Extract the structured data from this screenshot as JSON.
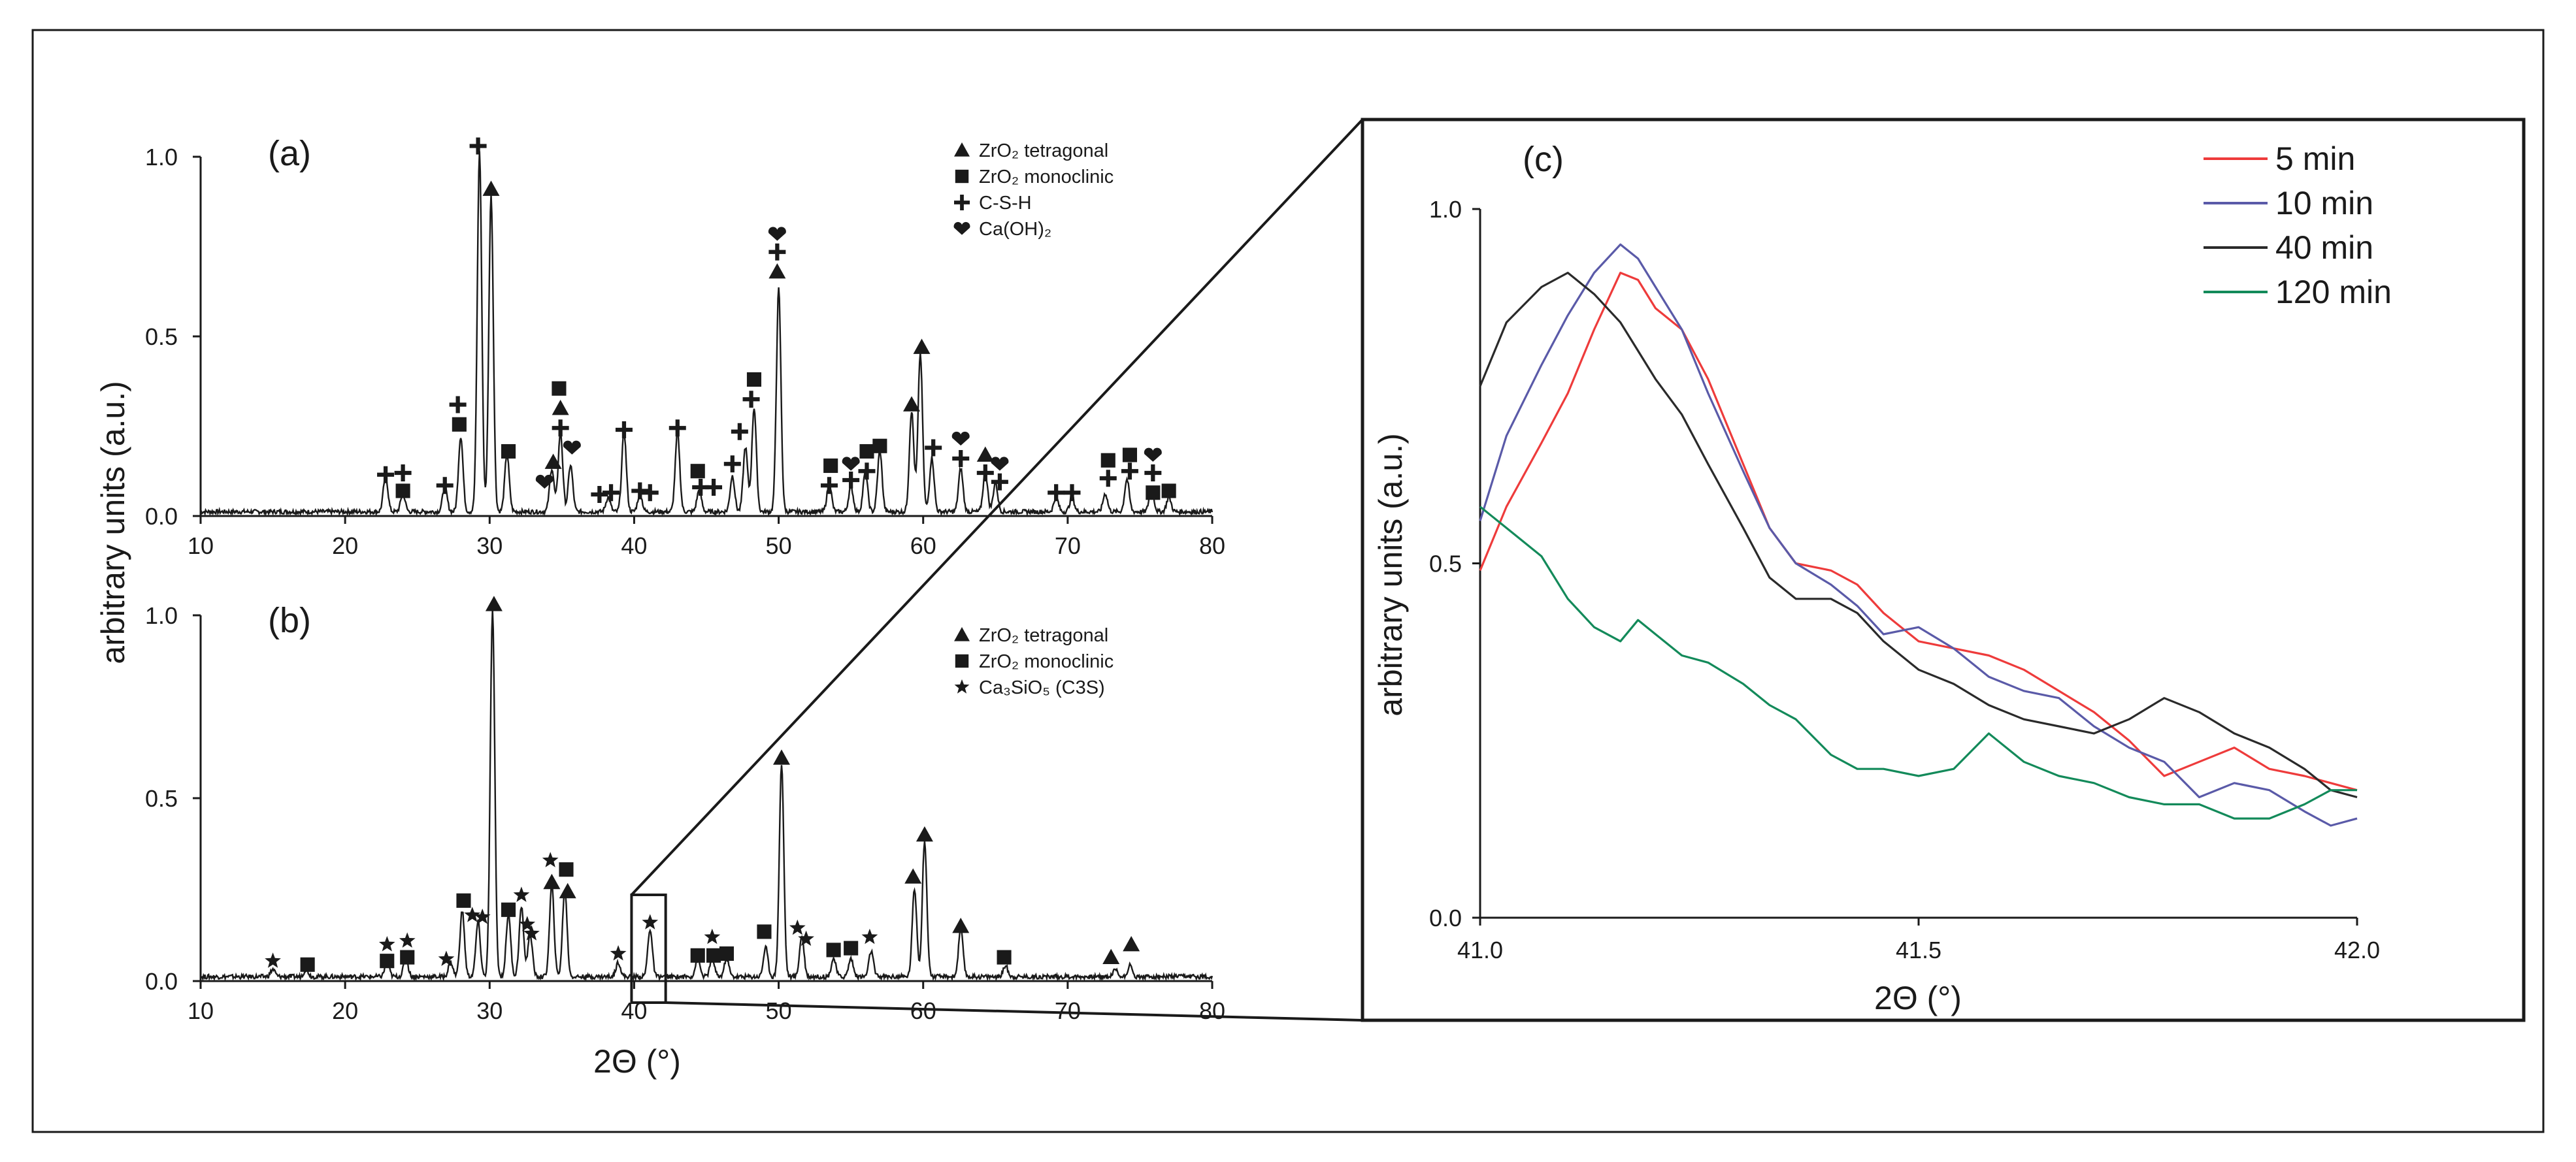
{
  "chart_data": [
    {
      "panel": "(a)",
      "type": "line",
      "xlim": [
        10,
        80
      ],
      "ylim": [
        0,
        1.0
      ],
      "x_ticks": [
        "10",
        "20",
        "30",
        "40",
        "50",
        "60",
        "70",
        "80"
      ],
      "y_ticks": [
        "0.0",
        "0.5",
        "1.0"
      ],
      "legend": [
        "ZrO₂ tetragonal",
        "ZrO₂ monoclinic",
        "C-S-H",
        "Ca(OH)₂"
      ],
      "legend_symbols": [
        "triangle",
        "square",
        "plus",
        "heart"
      ],
      "peaks": [
        {
          "x": 22.8,
          "y": 0.1
        },
        {
          "x": 24.0,
          "y": 0.05
        },
        {
          "x": 26.9,
          "y": 0.07
        },
        {
          "x": 28.0,
          "y": 0.21
        },
        {
          "x": 29.3,
          "y": 1.0
        },
        {
          "x": 30.1,
          "y": 0.88
        },
        {
          "x": 31.2,
          "y": 0.16
        },
        {
          "x": 34.3,
          "y": 0.12
        },
        {
          "x": 34.9,
          "y": 0.22
        },
        {
          "x": 35.6,
          "y": 0.13
        },
        {
          "x": 38.2,
          "y": 0.04
        },
        {
          "x": 39.3,
          "y": 0.22
        },
        {
          "x": 40.4,
          "y": 0.05
        },
        {
          "x": 43.0,
          "y": 0.22
        },
        {
          "x": 44.5,
          "y": 0.06
        },
        {
          "x": 46.8,
          "y": 0.1
        },
        {
          "x": 47.7,
          "y": 0.18
        },
        {
          "x": 48.3,
          "y": 0.29
        },
        {
          "x": 50.0,
          "y": 0.62
        },
        {
          "x": 53.5,
          "y": 0.08
        },
        {
          "x": 55.0,
          "y": 0.07
        },
        {
          "x": 56.0,
          "y": 0.11
        },
        {
          "x": 57.0,
          "y": 0.17
        },
        {
          "x": 59.2,
          "y": 0.28
        },
        {
          "x": 59.8,
          "y": 0.44
        },
        {
          "x": 60.6,
          "y": 0.15
        },
        {
          "x": 62.6,
          "y": 0.12
        },
        {
          "x": 64.3,
          "y": 0.11
        },
        {
          "x": 65.0,
          "y": 0.08
        },
        {
          "x": 69.2,
          "y": 0.04
        },
        {
          "x": 70.3,
          "y": 0.04
        },
        {
          "x": 72.6,
          "y": 0.05
        },
        {
          "x": 74.1,
          "y": 0.09
        },
        {
          "x": 75.8,
          "y": 0.07
        },
        {
          "x": 77.0,
          "y": 0.04
        }
      ],
      "markers": [
        {
          "s": "plus",
          "x": 22.8,
          "y": 0.115
        },
        {
          "s": "plus",
          "x": 24.0,
          "y": 0.12
        },
        {
          "s": "square",
          "x": 24.0,
          "y": 0.07
        },
        {
          "s": "plus",
          "x": 26.9,
          "y": 0.085
        },
        {
          "s": "plus",
          "x": 27.8,
          "y": 0.31
        },
        {
          "s": "square",
          "x": 27.9,
          "y": 0.255
        },
        {
          "s": "plus",
          "x": 29.2,
          "y": 1.03
        },
        {
          "s": "triangle",
          "x": 30.1,
          "y": 0.91
        },
        {
          "s": "square",
          "x": 31.3,
          "y": 0.18
        },
        {
          "s": "heart",
          "x": 33.8,
          "y": 0.095
        },
        {
          "s": "triangle",
          "x": 34.4,
          "y": 0.15
        },
        {
          "s": "square",
          "x": 34.8,
          "y": 0.355
        },
        {
          "s": "triangle",
          "x": 34.9,
          "y": 0.3
        },
        {
          "s": "plus",
          "x": 34.9,
          "y": 0.245
        },
        {
          "s": "heart",
          "x": 35.7,
          "y": 0.19
        },
        {
          "s": "plus",
          "x": 37.6,
          "y": 0.06
        },
        {
          "s": "plus",
          "x": 38.4,
          "y": 0.065
        },
        {
          "s": "plus",
          "x": 39.3,
          "y": 0.24
        },
        {
          "s": "plus",
          "x": 40.4,
          "y": 0.07
        },
        {
          "s": "plus",
          "x": 41.1,
          "y": 0.065
        },
        {
          "s": "plus",
          "x": 43.0,
          "y": 0.245
        },
        {
          "s": "square",
          "x": 44.4,
          "y": 0.125
        },
        {
          "s": "plus",
          "x": 44.6,
          "y": 0.08
        },
        {
          "s": "plus",
          "x": 45.5,
          "y": 0.08
        },
        {
          "s": "plus",
          "x": 46.8,
          "y": 0.145
        },
        {
          "s": "plus",
          "x": 47.3,
          "y": 0.235
        },
        {
          "s": "square",
          "x": 48.3,
          "y": 0.38
        },
        {
          "s": "plus",
          "x": 48.1,
          "y": 0.325
        },
        {
          "s": "heart",
          "x": 49.9,
          "y": 0.785
        },
        {
          "s": "plus",
          "x": 49.9,
          "y": 0.735
        },
        {
          "s": "triangle",
          "x": 49.9,
          "y": 0.68
        },
        {
          "s": "square",
          "x": 53.6,
          "y": 0.14
        },
        {
          "s": "plus",
          "x": 53.5,
          "y": 0.085
        },
        {
          "s": "heart",
          "x": 55.0,
          "y": 0.145
        },
        {
          "s": "plus",
          "x": 55.0,
          "y": 0.1
        },
        {
          "s": "square",
          "x": 56.1,
          "y": 0.18
        },
        {
          "s": "plus",
          "x": 56.1,
          "y": 0.125
        },
        {
          "s": "square",
          "x": 57.0,
          "y": 0.195
        },
        {
          "s": "triangle",
          "x": 59.2,
          "y": 0.31
        },
        {
          "s": "triangle",
          "x": 59.9,
          "y": 0.47
        },
        {
          "s": "plus",
          "x": 60.7,
          "y": 0.19
        },
        {
          "s": "heart",
          "x": 62.6,
          "y": 0.215
        },
        {
          "s": "plus",
          "x": 62.6,
          "y": 0.16
        },
        {
          "s": "triangle",
          "x": 64.3,
          "y": 0.17
        },
        {
          "s": "plus",
          "x": 64.3,
          "y": 0.12
        },
        {
          "s": "heart",
          "x": 65.3,
          "y": 0.145
        },
        {
          "s": "plus",
          "x": 65.3,
          "y": 0.095
        },
        {
          "s": "plus",
          "x": 69.2,
          "y": 0.065
        },
        {
          "s": "plus",
          "x": 70.3,
          "y": 0.065
        },
        {
          "s": "square",
          "x": 72.8,
          "y": 0.155
        },
        {
          "s": "plus",
          "x": 72.8,
          "y": 0.105
        },
        {
          "s": "square",
          "x": 74.3,
          "y": 0.17
        },
        {
          "s": "plus",
          "x": 74.3,
          "y": 0.125
        },
        {
          "s": "heart",
          "x": 75.9,
          "y": 0.17
        },
        {
          "s": "plus",
          "x": 75.9,
          "y": 0.12
        },
        {
          "s": "square",
          "x": 75.9,
          "y": 0.065
        },
        {
          "s": "square",
          "x": 77.0,
          "y": 0.07
        }
      ]
    },
    {
      "panel": "(b)",
      "type": "line",
      "xlim": [
        10,
        80
      ],
      "ylim": [
        0,
        1.0
      ],
      "x_ticks": [
        "10",
        "20",
        "30",
        "40",
        "50",
        "60",
        "70",
        "80"
      ],
      "y_ticks": [
        "0.0",
        "0.5",
        "1.0"
      ],
      "xlabel": "2Θ (°)",
      "legend": [
        "ZrO₂ tetragonal",
        "ZrO₂ monoclinic",
        "Ca₃SiO₅ (C3S)"
      ],
      "legend_symbols": [
        "triangle",
        "square",
        "star"
      ],
      "zoom_window": [
        40,
        42
      ],
      "peaks": [
        {
          "x": 15.0,
          "y": 0.02
        },
        {
          "x": 17.3,
          "y": 0.02
        },
        {
          "x": 22.9,
          "y": 0.04
        },
        {
          "x": 24.2,
          "y": 0.05
        },
        {
          "x": 27.3,
          "y": 0.04
        },
        {
          "x": 28.1,
          "y": 0.18
        },
        {
          "x": 29.2,
          "y": 0.15
        },
        {
          "x": 30.2,
          "y": 1.0
        },
        {
          "x": 31.3,
          "y": 0.17
        },
        {
          "x": 32.2,
          "y": 0.19
        },
        {
          "x": 32.8,
          "y": 0.12
        },
        {
          "x": 34.3,
          "y": 0.25
        },
        {
          "x": 35.2,
          "y": 0.24
        },
        {
          "x": 38.9,
          "y": 0.04
        },
        {
          "x": 41.1,
          "y": 0.13
        },
        {
          "x": 44.4,
          "y": 0.05
        },
        {
          "x": 45.4,
          "y": 0.05
        },
        {
          "x": 46.4,
          "y": 0.05
        },
        {
          "x": 49.1,
          "y": 0.08
        },
        {
          "x": 50.2,
          "y": 0.58
        },
        {
          "x": 51.6,
          "y": 0.11
        },
        {
          "x": 53.8,
          "y": 0.05
        },
        {
          "x": 55.0,
          "y": 0.05
        },
        {
          "x": 56.4,
          "y": 0.07
        },
        {
          "x": 59.4,
          "y": 0.24
        },
        {
          "x": 60.1,
          "y": 0.37
        },
        {
          "x": 62.6,
          "y": 0.13
        },
        {
          "x": 65.7,
          "y": 0.03
        },
        {
          "x": 73.3,
          "y": 0.02
        },
        {
          "x": 74.3,
          "y": 0.03
        }
      ],
      "markers": [
        {
          "s": "star",
          "x": 15.0,
          "y": 0.055
        },
        {
          "s": "square",
          "x": 17.4,
          "y": 0.045
        },
        {
          "s": "star",
          "x": 22.9,
          "y": 0.1
        },
        {
          "s": "square",
          "x": 22.9,
          "y": 0.055
        },
        {
          "s": "star",
          "x": 24.3,
          "y": 0.11
        },
        {
          "s": "square",
          "x": 24.3,
          "y": 0.065
        },
        {
          "s": "star",
          "x": 27.0,
          "y": 0.06
        },
        {
          "s": "square",
          "x": 28.2,
          "y": 0.22
        },
        {
          "s": "star",
          "x": 28.8,
          "y": 0.18
        },
        {
          "s": "star",
          "x": 29.5,
          "y": 0.175
        },
        {
          "s": "triangle",
          "x": 30.3,
          "y": 1.03
        },
        {
          "s": "square",
          "x": 31.3,
          "y": 0.195
        },
        {
          "s": "star",
          "x": 32.2,
          "y": 0.235
        },
        {
          "s": "star",
          "x": 32.6,
          "y": 0.155
        },
        {
          "s": "star",
          "x": 32.9,
          "y": 0.13
        },
        {
          "s": "star",
          "x": 34.2,
          "y": 0.33
        },
        {
          "s": "triangle",
          "x": 34.3,
          "y": 0.27
        },
        {
          "s": "square",
          "x": 35.3,
          "y": 0.305
        },
        {
          "s": "triangle",
          "x": 35.4,
          "y": 0.245
        },
        {
          "s": "star",
          "x": 38.9,
          "y": 0.075
        },
        {
          "s": "star",
          "x": 41.1,
          "y": 0.16
        },
        {
          "s": "square",
          "x": 44.4,
          "y": 0.07
        },
        {
          "s": "star",
          "x": 45.4,
          "y": 0.12
        },
        {
          "s": "square",
          "x": 45.5,
          "y": 0.07
        },
        {
          "s": "square",
          "x": 46.4,
          "y": 0.075
        },
        {
          "s": "square",
          "x": 49.0,
          "y": 0.135
        },
        {
          "s": "triangle",
          "x": 50.2,
          "y": 0.61
        },
        {
          "s": "star",
          "x": 51.3,
          "y": 0.145
        },
        {
          "s": "star",
          "x": 51.9,
          "y": 0.115
        },
        {
          "s": "square",
          "x": 53.8,
          "y": 0.085
        },
        {
          "s": "square",
          "x": 55.0,
          "y": 0.09
        },
        {
          "s": "star",
          "x": 56.3,
          "y": 0.12
        },
        {
          "s": "triangle",
          "x": 59.3,
          "y": 0.285
        },
        {
          "s": "triangle",
          "x": 60.1,
          "y": 0.4
        },
        {
          "s": "triangle",
          "x": 62.6,
          "y": 0.15
        },
        {
          "s": "square",
          "x": 65.6,
          "y": 0.065
        },
        {
          "s": "triangle",
          "x": 73.0,
          "y": 0.065
        },
        {
          "s": "triangle",
          "x": 74.4,
          "y": 0.1
        }
      ]
    },
    {
      "panel": "(c)",
      "type": "line",
      "xlim": [
        41.0,
        42.0
      ],
      "ylim": [
        0,
        1.0
      ],
      "x_ticks": [
        "41.0",
        "41.5",
        "42.0"
      ],
      "y_ticks": [
        "0.0",
        "0.5",
        "1.0"
      ],
      "xlabel": "2Θ (°)",
      "legend_position": "top-right",
      "series": [
        {
          "name": "5 min",
          "color": "#ee3b3b",
          "x": [
            41.0,
            41.03,
            41.07,
            41.1,
            41.13,
            41.16,
            41.18,
            41.2,
            41.23,
            41.26,
            41.3,
            41.33,
            41.36,
            41.4,
            41.43,
            41.46,
            41.5,
            41.54,
            41.58,
            41.62,
            41.66,
            41.7,
            41.74,
            41.78,
            41.82,
            41.86,
            41.9,
            41.94,
            41.97,
            42.0
          ],
          "y": [
            0.49,
            0.58,
            0.67,
            0.74,
            0.83,
            0.91,
            0.9,
            0.86,
            0.83,
            0.76,
            0.64,
            0.55,
            0.5,
            0.49,
            0.47,
            0.43,
            0.39,
            0.38,
            0.37,
            0.35,
            0.32,
            0.29,
            0.25,
            0.2,
            0.22,
            0.24,
            0.21,
            0.2,
            0.19,
            0.18
          ]
        },
        {
          "name": "10 min",
          "color": "#5a5aa8",
          "x": [
            41.0,
            41.03,
            41.07,
            41.1,
            41.13,
            41.16,
            41.18,
            41.2,
            41.23,
            41.26,
            41.3,
            41.33,
            41.36,
            41.4,
            41.43,
            41.46,
            41.5,
            41.54,
            41.58,
            41.62,
            41.66,
            41.7,
            41.74,
            41.78,
            41.82,
            41.86,
            41.9,
            41.94,
            41.97,
            42.0
          ],
          "y": [
            0.56,
            0.68,
            0.78,
            0.85,
            0.91,
            0.95,
            0.93,
            0.89,
            0.83,
            0.74,
            0.63,
            0.55,
            0.5,
            0.47,
            0.44,
            0.4,
            0.41,
            0.38,
            0.34,
            0.32,
            0.31,
            0.27,
            0.24,
            0.22,
            0.17,
            0.19,
            0.18,
            0.15,
            0.13,
            0.14
          ]
        },
        {
          "name": "40 min",
          "color": "#2a2a2a",
          "x": [
            41.0,
            41.03,
            41.07,
            41.1,
            41.13,
            41.16,
            41.18,
            41.2,
            41.23,
            41.26,
            41.3,
            41.33,
            41.36,
            41.4,
            41.43,
            41.46,
            41.5,
            41.54,
            41.58,
            41.62,
            41.66,
            41.7,
            41.74,
            41.78,
            41.82,
            41.86,
            41.9,
            41.94,
            41.97,
            42.0
          ],
          "y": [
            0.75,
            0.84,
            0.89,
            0.91,
            0.88,
            0.84,
            0.8,
            0.76,
            0.71,
            0.64,
            0.55,
            0.48,
            0.45,
            0.45,
            0.43,
            0.39,
            0.35,
            0.33,
            0.3,
            0.28,
            0.27,
            0.26,
            0.28,
            0.31,
            0.29,
            0.26,
            0.24,
            0.21,
            0.18,
            0.17
          ]
        },
        {
          "name": "120 min",
          "color": "#138a5a",
          "x": [
            41.0,
            41.03,
            41.07,
            41.1,
            41.13,
            41.16,
            41.18,
            41.2,
            41.23,
            41.26,
            41.3,
            41.33,
            41.36,
            41.4,
            41.43,
            41.46,
            41.5,
            41.54,
            41.58,
            41.62,
            41.66,
            41.7,
            41.74,
            41.78,
            41.82,
            41.86,
            41.9,
            41.94,
            41.97,
            42.0
          ],
          "y": [
            0.58,
            0.55,
            0.51,
            0.45,
            0.41,
            0.39,
            0.42,
            0.4,
            0.37,
            0.36,
            0.33,
            0.3,
            0.28,
            0.23,
            0.21,
            0.21,
            0.2,
            0.21,
            0.26,
            0.22,
            0.2,
            0.19,
            0.17,
            0.16,
            0.16,
            0.14,
            0.14,
            0.16,
            0.18,
            0.18
          ]
        }
      ]
    }
  ],
  "figure": {
    "ylabel": "arbitrary units (a.u.)",
    "panel_c_ylabel": "arbitrary units (a.u.)",
    "bottom_xlabel": "2Θ (°)"
  }
}
